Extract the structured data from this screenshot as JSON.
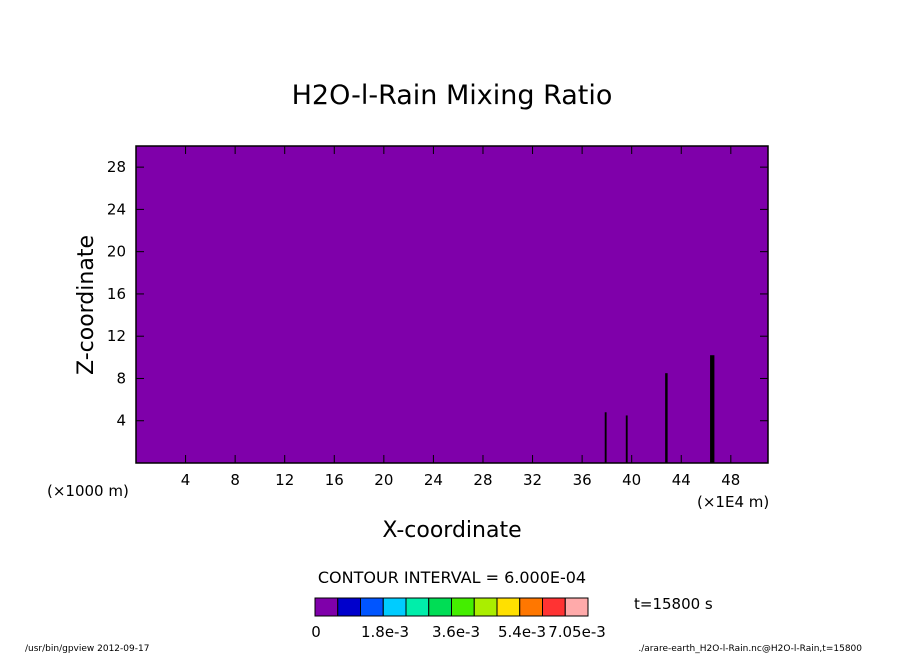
{
  "chart_data": {
    "type": "heatmap",
    "title": "H2O-l-Rain Mixing Ratio",
    "xlabel": "X-coordinate",
    "ylabel": "Z-coordinate",
    "x_unit_left": "(×1000 m)",
    "x_unit_right": "(×1E4 m)",
    "xlim": [
      0,
      51
    ],
    "ylim": [
      0,
      30
    ],
    "xticks": [
      4,
      8,
      12,
      16,
      20,
      24,
      28,
      32,
      36,
      40,
      44,
      48
    ],
    "yticks": [
      4,
      8,
      12,
      16,
      20,
      24,
      28
    ],
    "background_color": "#7f00aa",
    "contour_interval_text": "CONTOUR INTERVAL = 6.000E-04",
    "time_text": "t=15800 s",
    "colorbar": {
      "colors": [
        "#7f00aa",
        "#0000cc",
        "#0055ff",
        "#00ccff",
        "#00eeaa",
        "#00dd55",
        "#44ee00",
        "#aaee00",
        "#ffe000",
        "#ff7700",
        "#ff3333",
        "#ffaaaa"
      ],
      "labels": [
        "0",
        "1.8e-3",
        "3.6e-3",
        "5.4e-3",
        "7.05e-3"
      ]
    },
    "features": [
      {
        "x": 37.9,
        "z_top": 4.8,
        "w": 0.15,
        "color": "#000000"
      },
      {
        "x": 39.6,
        "z_top": 4.5,
        "w": 0.15,
        "color": "#000000"
      },
      {
        "x": 42.8,
        "z_top": 8.5,
        "w": 0.2,
        "color": "#000000"
      },
      {
        "x": 46.5,
        "z_top": 10.2,
        "w": 0.35,
        "color": "#000000"
      }
    ]
  },
  "footer": {
    "left": "/usr/bin/gpview  2012-09-17",
    "right": "./arare-earth_H2O-l-Rain.nc@H2O-l-Rain,t=15800"
  }
}
